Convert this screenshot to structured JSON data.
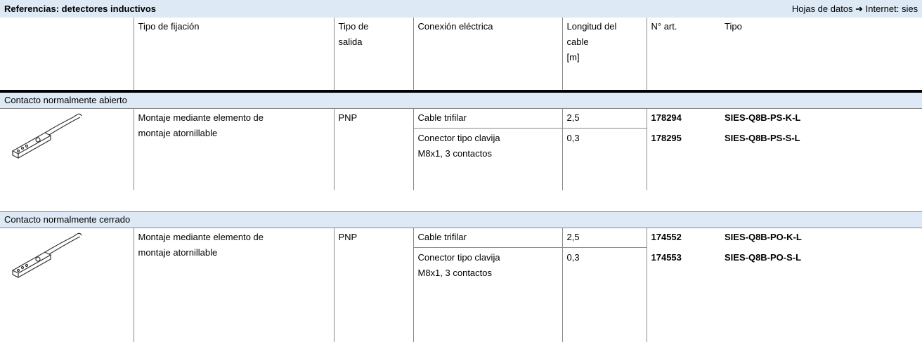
{
  "header": {
    "title": "Referencias: detectores inductivos",
    "link": "Hojas de datos ➔ Internet: sies"
  },
  "columns": [
    {
      "lines": [
        "Tipo de fijación"
      ]
    },
    {
      "lines": [
        "Tipo de",
        "salida"
      ]
    },
    {
      "lines": [
        "Conexión eléctrica"
      ]
    },
    {
      "lines": [
        "Longitud del",
        "cable",
        "[m]"
      ]
    },
    {
      "lines": [
        "N° art."
      ]
    },
    {
      "lines": [
        "Tipo"
      ]
    }
  ],
  "sections": [
    {
      "title": "Contacto normalmente abierto",
      "mounting": [
        "Montaje mediante elemento de",
        "montaje atornillable"
      ],
      "output": "PNP",
      "items": [
        {
          "connection": [
            "Cable trifilar"
          ],
          "length": "2,5",
          "part": "178294",
          "type": "SIES-Q8B-PS-K-L"
        },
        {
          "connection": [
            "Conector tipo clavija",
            "M8x1, 3 contactos"
          ],
          "length": "0,3",
          "part": "178295",
          "type": "SIES-Q8B-PS-S-L"
        }
      ]
    },
    {
      "title": "Contacto normalmente cerrado",
      "mounting": [
        "Montaje mediante elemento de",
        "montaje atornillable"
      ],
      "output": "PNP",
      "items": [
        {
          "connection": [
            "Cable trifilar"
          ],
          "length": "2,5",
          "part": "174552",
          "type": "SIES-Q8B-PO-K-L"
        },
        {
          "connection": [
            "Conector tipo clavija",
            "M8x1, 3 contactos"
          ],
          "length": "0,3",
          "part": "174553",
          "type": "SIES-Q8B-PO-S-L"
        }
      ]
    }
  ]
}
